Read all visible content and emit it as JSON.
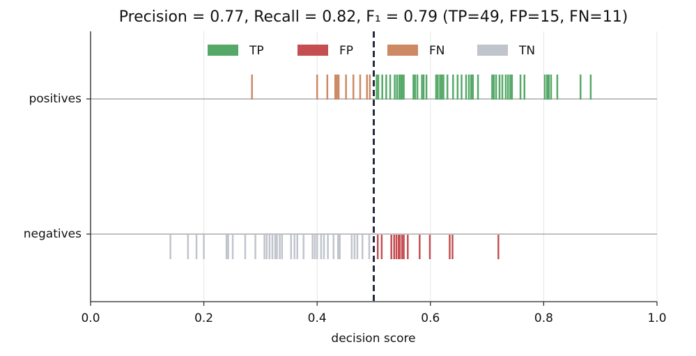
{
  "chart_data": {
    "type": "strip",
    "title": "Precision = 0.77,  Recall = 0.82,  F₁ = 0.79   (TP=49, FP=15, FN=11)",
    "xlabel": "decision score",
    "categories": [
      "positives",
      "negatives"
    ],
    "xlim": [
      0,
      1
    ],
    "xticks": [
      {
        "value": 0,
        "label": "0.0"
      },
      0.2,
      0.4,
      0.6,
      0.8,
      {
        "value": 1,
        "label": "1.0"
      }
    ],
    "grid": true,
    "threshold": 0.5,
    "series": [
      {
        "name": "TP",
        "color": "#55a868",
        "row": "positives",
        "values": [
          0.505,
          0.508,
          0.515,
          0.522,
          0.529,
          0.537,
          0.541,
          0.545,
          0.548,
          0.55,
          0.553,
          0.57,
          0.573,
          0.577,
          0.585,
          0.588,
          0.593,
          0.61,
          0.613,
          0.617,
          0.62,
          0.623,
          0.63,
          0.64,
          0.648,
          0.655,
          0.663,
          0.668,
          0.672,
          0.675,
          0.684,
          0.709,
          0.712,
          0.716,
          0.722,
          0.727,
          0.733,
          0.737,
          0.741,
          0.744,
          0.759,
          0.766,
          0.802,
          0.806,
          0.809,
          0.813,
          0.824,
          0.865,
          0.883
        ]
      },
      {
        "name": "FP",
        "color": "#c44e52",
        "row": "negatives",
        "values": [
          0.507,
          0.514,
          0.531,
          0.536,
          0.54,
          0.544,
          0.546,
          0.55,
          0.553,
          0.56,
          0.581,
          0.599,
          0.634,
          0.639,
          0.72
        ]
      },
      {
        "name": "FN",
        "color": "#cc8963",
        "row": "positives",
        "values": [
          0.285,
          0.4,
          0.418,
          0.432,
          0.435,
          0.438,
          0.451,
          0.464,
          0.476,
          0.488,
          0.493
        ]
      },
      {
        "name": "TN",
        "color": "#c0c4cc",
        "row": "negatives",
        "values": [
          0.141,
          0.172,
          0.187,
          0.2,
          0.24,
          0.243,
          0.251,
          0.273,
          0.291,
          0.307,
          0.311,
          0.316,
          0.321,
          0.326,
          0.329,
          0.334,
          0.338,
          0.354,
          0.36,
          0.365,
          0.376,
          0.392,
          0.396,
          0.4,
          0.407,
          0.412,
          0.419,
          0.429,
          0.437,
          0.44,
          0.461,
          0.466,
          0.471,
          0.48,
          0.492
        ]
      }
    ]
  }
}
